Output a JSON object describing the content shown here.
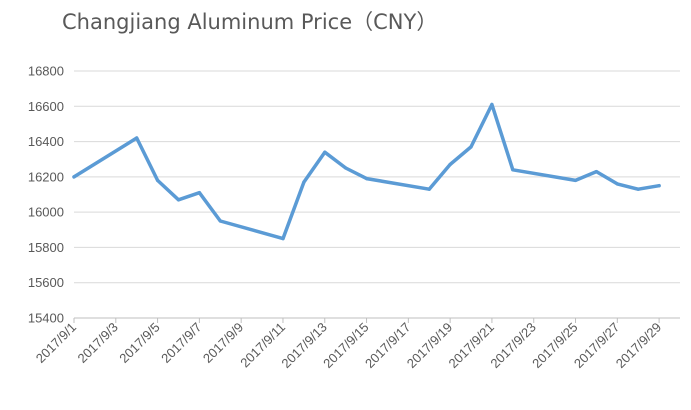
{
  "chart_data": {
    "type": "line",
    "title": "Changjiang Aluminum Price（CNY）",
    "xlabel": "",
    "ylabel": "",
    "ylim": [
      15400,
      16800
    ],
    "yticks": [
      15400,
      15600,
      15800,
      16000,
      16200,
      16400,
      16600,
      16800
    ],
    "grid": true,
    "legend": "none",
    "color": "#5b9bd5",
    "xlim": [
      "2017/9/1",
      "2017/9/30"
    ],
    "xtick_labels": [
      "2017/9/1",
      "2017/9/3",
      "2017/9/5",
      "2017/9/7",
      "2017/9/9",
      "2017/9/11",
      "2017/9/13",
      "2017/9/15",
      "2017/9/17",
      "2017/9/19",
      "2017/9/21",
      "2017/9/23",
      "2017/9/25",
      "2017/9/27",
      "2017/9/29"
    ],
    "series": [
      {
        "x": [
          "2017/9/1",
          "2017/9/4",
          "2017/9/5",
          "2017/9/6",
          "2017/9/7",
          "2017/9/8",
          "2017/9/11",
          "2017/9/12",
          "2017/9/13",
          "2017/9/14",
          "2017/9/15",
          "2017/9/18",
          "2017/9/19",
          "2017/9/20",
          "2017/9/21",
          "2017/9/22",
          "2017/9/25",
          "2017/9/26",
          "2017/9/27",
          "2017/9/28",
          "2017/9/29"
        ],
        "values": [
          16200,
          16420,
          16180,
          16070,
          16110,
          15950,
          15850,
          16170,
          16340,
          16250,
          16190,
          16130,
          16270,
          16370,
          16610,
          16240,
          16180,
          16230,
          16160,
          16130,
          16150
        ]
      }
    ]
  }
}
